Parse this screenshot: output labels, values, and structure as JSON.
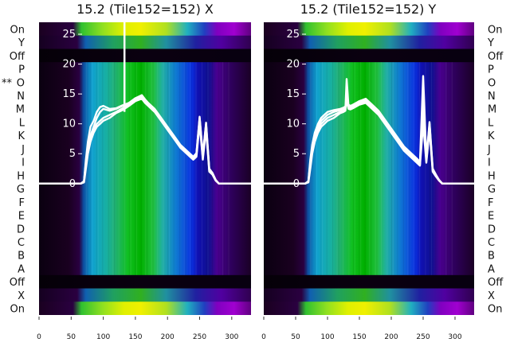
{
  "chart_data": [
    {
      "type": "heatmap",
      "title": "15.2 (Tile152=152) X",
      "row_labels": [
        "On",
        "Y",
        "Off",
        "P",
        "O",
        "N",
        "M",
        "L",
        "K",
        "J",
        "I",
        "H",
        "G",
        "F",
        "E",
        "D",
        "C",
        "B",
        "A",
        "Off",
        "X",
        "On"
      ],
      "row_marker": "**",
      "row_marker_row": "O",
      "xlim": [
        0,
        330
      ],
      "x_ticks": [
        0,
        50,
        100,
        150,
        200,
        250,
        300
      ],
      "overlay_ylim": [
        -22,
        27
      ],
      "overlay_y_ticks": [
        0,
        5,
        10,
        15,
        20,
        25
      ],
      "x_profile": [
        0,
        50,
        60,
        65,
        70,
        73,
        76,
        80,
        85,
        90,
        95,
        100,
        110,
        120,
        130,
        140,
        150,
        160,
        165,
        170,
        180,
        190,
        200,
        210,
        220,
        230,
        240,
        245,
        250,
        255,
        260,
        265,
        270,
        275,
        280,
        300,
        330
      ],
      "overlay_series": [
        {
          "y": [
            0,
            0,
            0,
            0,
            0.2,
            2.5,
            5.0,
            7.0,
            8.5,
            9.5,
            10.0,
            10.5,
            11.0,
            11.8,
            12.3,
            13.0,
            13.8,
            14.2,
            13.5,
            13.0,
            12.0,
            10.5,
            9.0,
            7.5,
            6.0,
            5.0,
            4.0,
            4.5,
            10.0,
            4.0,
            9.0,
            2.0,
            1.5,
            0.5,
            0,
            0,
            0
          ]
        },
        {
          "y": [
            0,
            0,
            0,
            0,
            0.3,
            3.0,
            5.5,
            7.5,
            9.0,
            10.0,
            10.5,
            11.0,
            11.5,
            12.0,
            12.6,
            13.2,
            14.0,
            14.5,
            13.8,
            13.2,
            12.2,
            10.7,
            9.2,
            7.7,
            6.2,
            5.2,
            4.2,
            4.8,
            10.5,
            4.3,
            9.5,
            2.2,
            1.6,
            0.5,
            0,
            0,
            0
          ]
        },
        {
          "y": [
            0,
            0,
            0,
            0,
            0.4,
            3.5,
            6.0,
            8.0,
            9.5,
            11.0,
            12.0,
            12.5,
            12.2,
            12.5,
            13.0,
            13.4,
            14.2,
            14.7,
            14.0,
            13.4,
            12.4,
            10.9,
            9.4,
            7.9,
            6.4,
            5.4,
            4.4,
            5.0,
            11.0,
            4.6,
            10.0,
            2.4,
            1.7,
            0.6,
            0,
            0,
            0
          ]
        },
        {
          "y": [
            0,
            0,
            0,
            0,
            0.4,
            4.0,
            7.0,
            9.5,
            10.5,
            12.0,
            12.8,
            13.0,
            12.5,
            12.6,
            13.1,
            13.5,
            14.3,
            14.8,
            14.1,
            13.5,
            12.5,
            11.0,
            9.5,
            8.0,
            6.5,
            5.5,
            4.5,
            5.1,
            11.2,
            4.8,
            10.2,
            2.5,
            1.8,
            0.6,
            0,
            0,
            0
          ]
        }
      ],
      "spike_x": 133,
      "spike_y": 27
    },
    {
      "type": "heatmap",
      "title": "15.2 (Tile152=152) Y",
      "row_labels": [
        "On",
        "Y",
        "Off",
        "P",
        "O",
        "N",
        "M",
        "L",
        "K",
        "J",
        "I",
        "H",
        "G",
        "F",
        "E",
        "D",
        "C",
        "B",
        "A",
        "Off",
        "X",
        "On"
      ],
      "xlim": [
        0,
        330
      ],
      "x_ticks": [
        0,
        50,
        100,
        150,
        200,
        250,
        300
      ],
      "overlay_ylim": [
        -22,
        27
      ],
      "overlay_y_ticks": [
        0,
        5,
        10,
        15,
        20,
        25
      ],
      "x_profile": [
        0,
        50,
        60,
        65,
        70,
        73,
        76,
        80,
        85,
        90,
        95,
        100,
        110,
        120,
        125,
        128,
        130,
        133,
        136,
        140,
        150,
        160,
        165,
        170,
        180,
        190,
        200,
        210,
        220,
        230,
        240,
        245,
        250,
        255,
        260,
        265,
        270,
        275,
        280,
        300,
        330
      ],
      "overlay_series": [
        {
          "y": [
            0,
            0,
            0,
            0,
            0.2,
            2.5,
            5.0,
            7.0,
            8.5,
            9.5,
            10.0,
            10.5,
            11.0,
            11.8,
            12.0,
            12.2,
            14.0,
            12.5,
            12.4,
            12.6,
            13.2,
            13.5,
            13.0,
            12.5,
            11.5,
            10.0,
            8.5,
            7.0,
            5.5,
            4.5,
            3.5,
            3.0,
            10.0,
            3.5,
            9.0,
            2.0,
            1.2,
            0.5,
            0,
            0,
            0
          ]
        },
        {
          "y": [
            0,
            0,
            0,
            0,
            0.3,
            3.0,
            5.5,
            7.5,
            9.0,
            10.0,
            10.5,
            11.0,
            11.5,
            12.0,
            12.2,
            12.5,
            17.5,
            12.8,
            12.6,
            12.8,
            13.4,
            13.8,
            13.3,
            12.8,
            11.8,
            10.3,
            8.8,
            7.3,
            5.8,
            4.8,
            3.8,
            3.2,
            12.5,
            3.8,
            9.5,
            2.2,
            1.3,
            0.5,
            0,
            0,
            0
          ]
        },
        {
          "y": [
            0,
            0,
            0,
            0,
            0.4,
            3.5,
            6.0,
            8.0,
            9.5,
            10.5,
            11.0,
            11.5,
            12.0,
            12.3,
            12.5,
            12.7,
            14.5,
            13.0,
            12.8,
            13.0,
            13.6,
            14.0,
            13.5,
            13.0,
            12.0,
            10.5,
            9.0,
            7.5,
            6.0,
            5.0,
            4.0,
            3.4,
            14.0,
            4.0,
            10.0,
            2.4,
            1.4,
            0.6,
            0,
            0,
            0
          ]
        },
        {
          "y": [
            0,
            0,
            0,
            0,
            0.4,
            4.0,
            6.5,
            8.5,
            10.0,
            11.0,
            11.5,
            12.0,
            12.3,
            12.5,
            12.7,
            12.9,
            13.5,
            13.2,
            13.0,
            13.2,
            13.8,
            14.2,
            13.7,
            13.2,
            12.2,
            10.7,
            9.2,
            7.7,
            6.2,
            5.2,
            4.2,
            3.6,
            18.0,
            4.2,
            10.3,
            2.5,
            1.5,
            0.6,
            0,
            0,
            0
          ]
        }
      ]
    }
  ]
}
